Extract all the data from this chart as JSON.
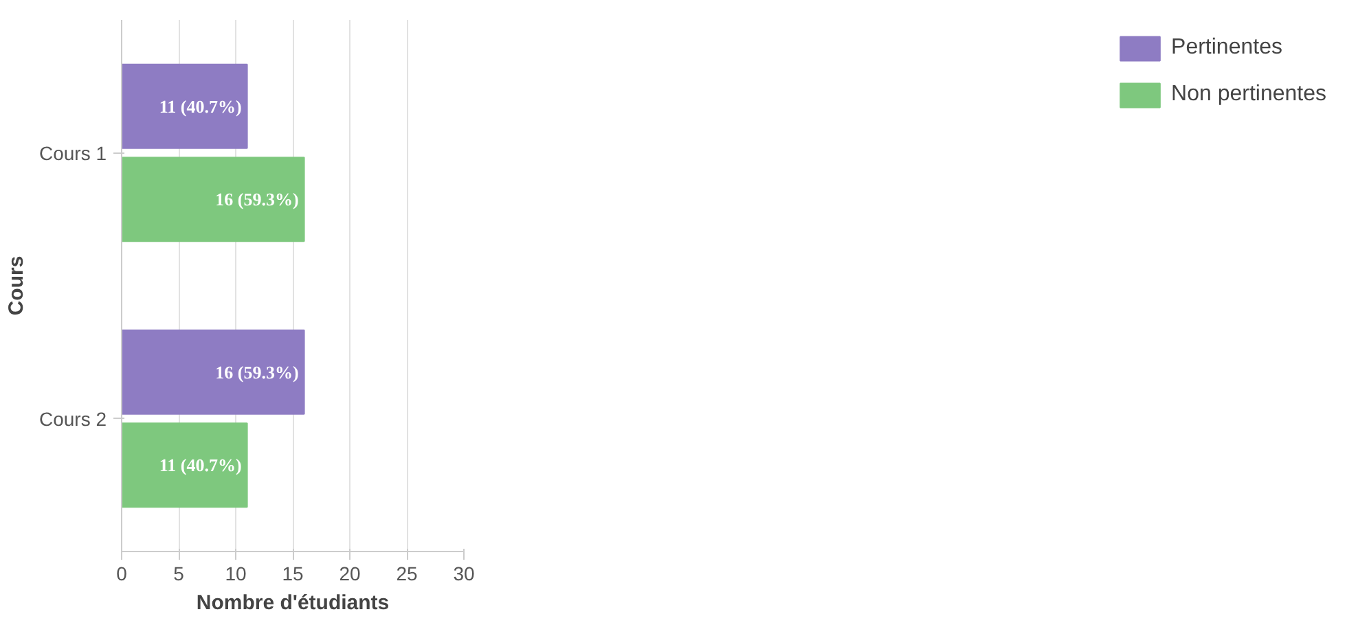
{
  "chart_data": {
    "type": "bar",
    "orientation": "horizontal",
    "xlabel": "Nombre d'étudiants",
    "ylabel": "Cours",
    "categories": [
      "Cours 1",
      "Cours 2"
    ],
    "series": [
      {
        "name": "Pertinentes",
        "color": "#8e7cc3",
        "values": [
          11,
          16
        ],
        "value_labels": [
          "11 (40.7%)",
          "16 (59.3%)"
        ]
      },
      {
        "name": "Non pertinentes",
        "color": "#7ec87e",
        "values": [
          16,
          11
        ],
        "value_labels": [
          "16 (59.3%)",
          "11 (40.7%)"
        ]
      }
    ],
    "xlim": [
      0,
      30
    ],
    "xticks": [
      0,
      5,
      10,
      15,
      20,
      25,
      30
    ],
    "grid": "x",
    "legend": "right"
  }
}
